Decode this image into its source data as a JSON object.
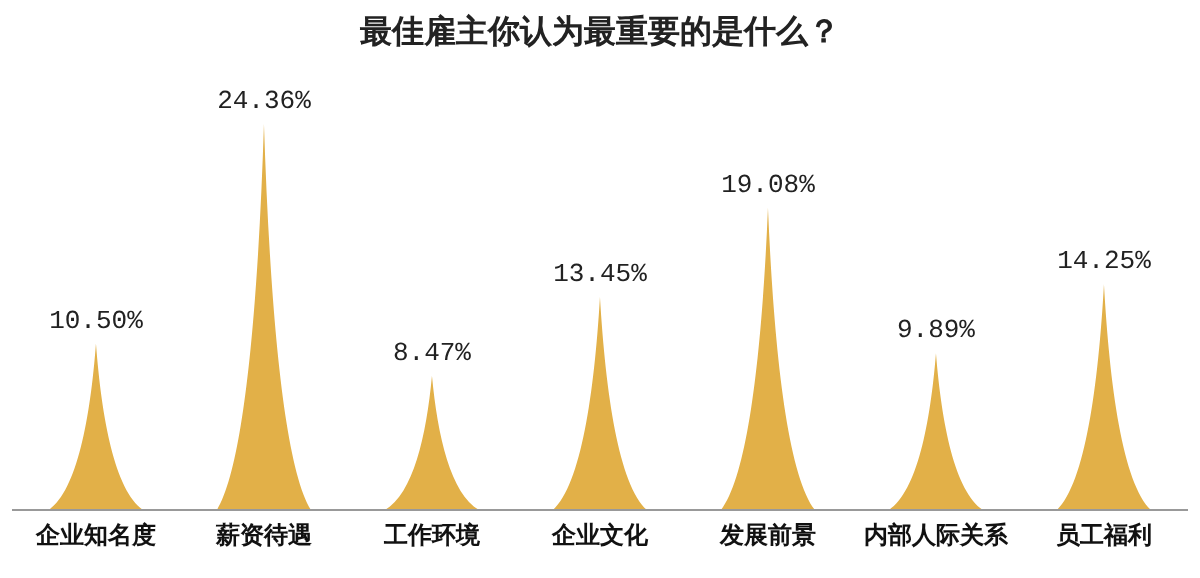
{
  "chart_data": {
    "type": "bar",
    "title": "最佳雇主你认为最重要的是什么？",
    "categories": [
      "企业知名度",
      "薪资待遇",
      "工作环境",
      "企业文化",
      "发展前景",
      "内部人际关系",
      "员工福利"
    ],
    "values": [
      10.5,
      24.36,
      8.47,
      13.45,
      19.08,
      9.89,
      14.25
    ],
    "value_labels": [
      "10.50%",
      "24.36%",
      "8.47%",
      "13.45%",
      "19.08%",
      "9.89%",
      "14.25%"
    ],
    "color": "#e2b048"
  }
}
